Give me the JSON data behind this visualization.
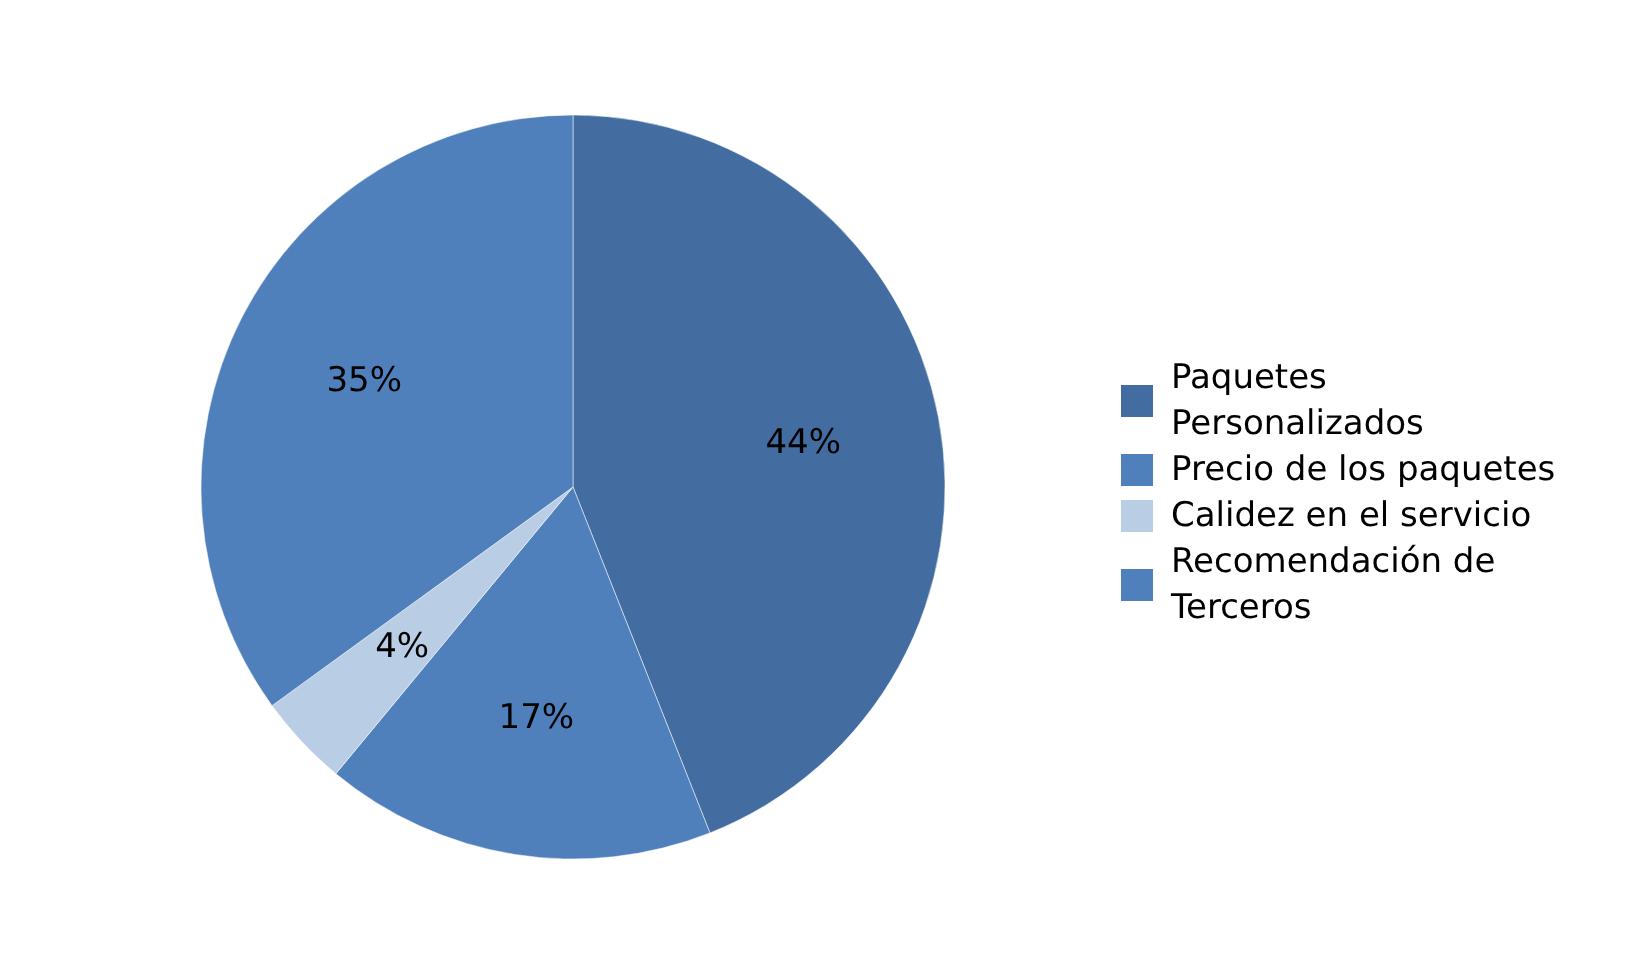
{
  "chart_data": {
    "type": "pie",
    "categories": [
      "Paquetes Personalizados",
      "Precio de los paquetes",
      "Calidez en el servicio",
      "Recomendación de Terceros"
    ],
    "values": [
      44,
      17,
      4,
      35
    ],
    "value_labels": [
      "44%",
      "17%",
      "4%",
      "35%"
    ],
    "colors": [
      "#436ca0",
      "#4f80bc",
      "#b9cde5",
      "#4f80bc"
    ],
    "legend": "right"
  }
}
